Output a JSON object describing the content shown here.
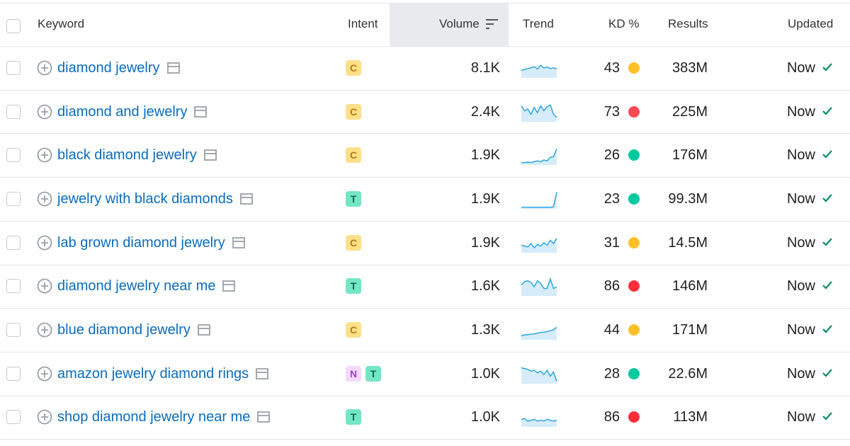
{
  "header": {
    "columns": [
      "Keyword",
      "Intent",
      "Volume",
      "Trend",
      "KD %",
      "Results",
      "Updated"
    ]
  },
  "intent_colors": {
    "C": {
      "bg": "#ffe08a",
      "fg": "#b8780a"
    },
    "T": {
      "bg": "#74e6c4",
      "fg": "#006b52"
    },
    "N": {
      "bg": "#f6d9ff",
      "fg": "#a13fc6"
    }
  },
  "rows": [
    {
      "keyword": "diamond jewelry",
      "intent": [
        "C"
      ],
      "volume": "8.1K",
      "trend": [
        40,
        45,
        50,
        55,
        62,
        48,
        70,
        55,
        60,
        50,
        55,
        50
      ],
      "kd": 43,
      "kd_color": "#ffbf2a",
      "results": "383M",
      "updated": "Now"
    },
    {
      "keyword": "diamond and jewelry",
      "intent": [
        "C"
      ],
      "volume": "2.4K",
      "trend": [
        90,
        60,
        70,
        40,
        80,
        50,
        90,
        60,
        85,
        95,
        40,
        20
      ],
      "kd": 73,
      "kd_color": "#ff4953",
      "results": "225M",
      "updated": "Now"
    },
    {
      "keyword": "black diamond jewelry",
      "intent": [
        "C"
      ],
      "volume": "1.9K",
      "trend": [
        10,
        10,
        12,
        10,
        15,
        20,
        15,
        25,
        20,
        40,
        45,
        90
      ],
      "kd": 26,
      "kd_color": "#00c9a0",
      "results": "176M",
      "updated": "Now"
    },
    {
      "keyword": "jewelry with black diamonds",
      "intent": [
        "T"
      ],
      "volume": "1.9K",
      "trend": [
        5,
        5,
        5,
        5,
        5,
        5,
        5,
        5,
        6,
        5,
        8,
        95
      ],
      "kd": 23,
      "kd_color": "#00c9a0",
      "results": "99.3M",
      "updated": "Now"
    },
    {
      "keyword": "lab grown diamond jewelry",
      "intent": [
        "C"
      ],
      "volume": "1.9K",
      "trend": [
        40,
        35,
        30,
        50,
        25,
        45,
        35,
        55,
        40,
        70,
        50,
        80
      ],
      "kd": 31,
      "kd_color": "#ffbf2a",
      "results": "14.5M",
      "updated": "Now"
    },
    {
      "keyword": "diamond jewelry near me",
      "intent": [
        "T"
      ],
      "volume": "1.6K",
      "trend": [
        60,
        80,
        85,
        75,
        50,
        85,
        70,
        40,
        40,
        95,
        40,
        50
      ],
      "kd": 86,
      "kd_color": "#ff2e3b",
      "results": "146M",
      "updated": "Now"
    },
    {
      "keyword": "blue diamond jewelry",
      "intent": [
        "C"
      ],
      "volume": "1.3K",
      "trend": [
        20,
        25,
        25,
        30,
        30,
        35,
        40,
        40,
        45,
        50,
        55,
        70
      ],
      "kd": 44,
      "kd_color": "#ffbf2a",
      "results": "171M",
      "updated": "Now"
    },
    {
      "keyword": "amazon jewelry diamond rings",
      "intent": [
        "N",
        "T"
      ],
      "volume": "1.0K",
      "trend": [
        90,
        85,
        80,
        70,
        75,
        60,
        70,
        50,
        75,
        40,
        65,
        10
      ],
      "kd": 28,
      "kd_color": "#00c9a0",
      "results": "22.6M",
      "updated": "Now"
    },
    {
      "keyword": "shop diamond jewelry near me",
      "intent": [
        "T"
      ],
      "volume": "1.0K",
      "trend": [
        40,
        45,
        30,
        35,
        40,
        30,
        35,
        30,
        40,
        35,
        30,
        35
      ],
      "kd": 86,
      "kd_color": "#ff2e3b",
      "results": "113M",
      "updated": "Now"
    }
  ]
}
